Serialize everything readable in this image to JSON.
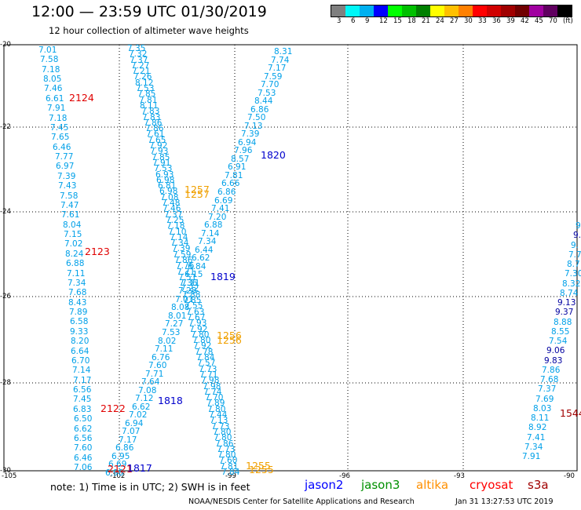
{
  "header": {
    "title": "12:00 — 23:59 UTC 01/30/2019",
    "subtitle": "12 hour collection of altimeter wave heights"
  },
  "legend": {
    "colors": [
      "#7f7f7f",
      "#00f7f7",
      "#00b0f0",
      "#0000ff",
      "#00ff00",
      "#00c000",
      "#008000",
      "#ffff00",
      "#ffc000",
      "#ff8000",
      "#ff0000",
      "#d00000",
      "#a00000",
      "#700000",
      "#a000a0",
      "#600060",
      "#000000"
    ],
    "values": [
      "3",
      "6",
      "9",
      "12",
      "15",
      "18",
      "21",
      "24",
      "27",
      "30",
      "33",
      "36",
      "39",
      "42",
      "45",
      "70",
      "(ft)"
    ]
  },
  "axes": {
    "x_ticks": [
      "-105",
      "-102",
      "-99",
      "-96",
      "-93",
      "-90"
    ],
    "y_ticks": [
      "-20",
      "-22",
      "-24",
      "-26",
      "-28",
      "-30"
    ]
  },
  "passes": [
    {
      "label": "2124",
      "color": "#e00000"
    },
    {
      "label": "2123",
      "color": "#e00000"
    },
    {
      "label": "2122",
      "color": "#e00000"
    },
    {
      "label": "2121",
      "color": "#e00000"
    },
    {
      "label": "1820",
      "color": "#0000cc"
    },
    {
      "label": "1819",
      "color": "#0000cc"
    },
    {
      "label": "1818",
      "color": "#0000cc"
    },
    {
      "label": "1817",
      "color": "#0000cc"
    },
    {
      "label": "1257",
      "color": "#f0a000"
    },
    {
      "label": "1257",
      "color": "#f0a000"
    },
    {
      "label": "1256",
      "color": "#f0a000"
    },
    {
      "label": "1256",
      "color": "#f0a000"
    },
    {
      "label": "1255",
      "color": "#f0a000"
    },
    {
      "label": "1255",
      "color": "#f0a000"
    },
    {
      "label": "1544",
      "color": "#a00000"
    }
  ],
  "tracks": {
    "cryosat_left": [
      "7.01",
      "7.58",
      "7.18",
      "8.05",
      "7.46",
      "6.61",
      "7.91",
      "7.18",
      "7.45",
      "7.65",
      "6.46",
      "7.77",
      "6.97",
      "7.39",
      "7.43",
      "7.58",
      "7.47",
      "7.61",
      "8.04",
      "7.15",
      "7.02",
      "8.24",
      "6.88",
      "7.11",
      "7.34",
      "7.68",
      "8.43",
      "7.89",
      "6.58",
      "9.33",
      "8.20",
      "6.64",
      "6.70",
      "7.14",
      "7.17",
      "6.56",
      "7.45",
      "6.83",
      "6.50",
      "6.62",
      "6.56",
      "7.60",
      "6.46",
      "7.06"
    ],
    "jason2_descending": [
      "7.35",
      "7.32",
      "7.37",
      "7.27",
      "7.21",
      "7.26",
      "8.12",
      "7.53",
      "7.85",
      "7.81",
      "8.11",
      "7.83",
      "7.83",
      "7.86",
      "7.86",
      "7.61",
      "7.65",
      "7.92",
      "7.93",
      "7.85",
      "7.91",
      "7.53",
      "6.93",
      "6.98",
      "6.81",
      "6.98",
      "7.08",
      "7.48",
      "7.46",
      "7.37",
      "7.25",
      "7.18",
      "7.10",
      "7.14",
      "7.34",
      "7.39",
      "7.59",
      "7.86",
      "7.76",
      "7.71",
      "7.51",
      "7.36",
      "7.22",
      "7.88",
      "7.85",
      "7.55",
      "7.63",
      "7.67",
      "7.93",
      "7.92",
      "7.80",
      "7.80",
      "7.92",
      "7.78",
      "7.84",
      "7.57",
      "7.73",
      "7.71",
      "7.98",
      "7.98",
      "7.74",
      "7.70",
      "7.89",
      "7.80",
      "7.44",
      "7.13",
      "7.73",
      "7.80",
      "7.80",
      "7.86",
      "7.73",
      "7.80",
      "7.60",
      "7.81",
      "7.84"
    ],
    "jason2_ascending": [
      "8.31",
      "7.74",
      "7.17",
      "7.59",
      "7.70",
      "7.53",
      "8.44",
      "6.86",
      "7.50",
      "7.13",
      "7.39",
      "6.94",
      "7.96",
      "8.57",
      "6.91",
      "7.81",
      "6.66",
      "6.86",
      "6.69",
      "7.41",
      "7.20",
      "6.88",
      "7.14",
      "7.34",
      "6.44",
      "6.62",
      "6.84",
      "6.15",
      "7.11",
      "7.28",
      "7.01",
      "8.08",
      "8.01",
      "7.27",
      "7.53",
      "8.02",
      "7.11",
      "6.76",
      "7.60",
      "7.71",
      "7.64",
      "7.08",
      "7.12",
      "6.62",
      "7.02",
      "6.94",
      "7.07",
      "7.17",
      "6.86",
      "6.95",
      "6.69",
      "6.98"
    ],
    "s3a_right": [
      "9.",
      "9.",
      "9.",
      "7.7",
      "8.7",
      "7.30",
      "8.32",
      "8.74",
      "9.13",
      "9.37",
      "8.88",
      "8.55",
      "7.54",
      "9.06",
      "9.83",
      "7.86",
      "7.68",
      "7.37",
      "7.69",
      "8.03",
      "8.11",
      "8.92",
      "7.41",
      "7.34",
      "7.91"
    ],
    "s3a_right_dark": [
      false,
      true,
      false,
      false,
      false,
      false,
      false,
      false,
      true,
      true,
      false,
      false,
      false,
      true,
      true,
      false,
      false,
      false,
      false,
      false,
      false,
      false,
      false,
      false,
      false
    ]
  },
  "footer": {
    "note": "note:  1) Time is in UTC;  2) SWH is in feet",
    "satellites": [
      {
        "name": "jason2",
        "color": "#0000ff"
      },
      {
        "name": "jason3",
        "color": "#009000"
      },
      {
        "name": "altika",
        "color": "#ff9000"
      },
      {
        "name": "cryosat",
        "color": "#ff0000"
      },
      {
        "name": "s3a",
        "color": "#a00000"
      }
    ],
    "credit": "NOAA/NESDIS Center for Satellite Applications and Research",
    "timestamp": "Jan 31 13:27:53 UTC 2019"
  }
}
